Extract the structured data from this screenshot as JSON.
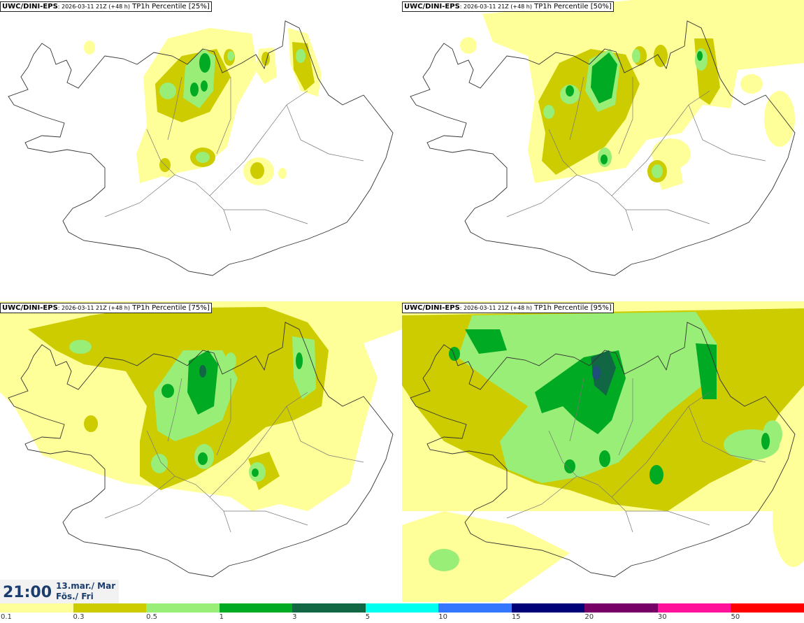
{
  "panels": [
    {
      "model": "UWC/DINI-EPS",
      "meta": ": 2026-03-11 21Z (+48 h)",
      "product": " TP1h Percentile [25%]"
    },
    {
      "model": "UWC/DINI-EPS",
      "meta": ": 2026-03-11 21Z (+48 h)",
      "product": " TP1h Percentile [50%]"
    },
    {
      "model": "UWC/DINI-EPS",
      "meta": ": 2026-03-11 21Z (+48 h)",
      "product": " TP1h Percentile [75%]"
    },
    {
      "model": "UWC/DINI-EPS",
      "meta": ": 2026-03-11 21Z (+48 h)",
      "product": " TP1h Percentile [95%]"
    }
  ],
  "valid_time": {
    "hour": "21:00",
    "date_line1": "13.mar./ Mar",
    "date_line2": "Fös./ Fri"
  },
  "legend": {
    "labels": [
      "0.1",
      "0.3",
      "0.5",
      "1",
      "3",
      "5",
      "10",
      "15",
      "20",
      "30",
      "50"
    ],
    "colors": [
      "#ffff99",
      "#cccc00",
      "#99ee77",
      "#00aa22",
      "#116644",
      "#00ffee",
      "#3377ff",
      "#000077",
      "#770066",
      "#ff1199",
      "#ff0000"
    ]
  }
}
